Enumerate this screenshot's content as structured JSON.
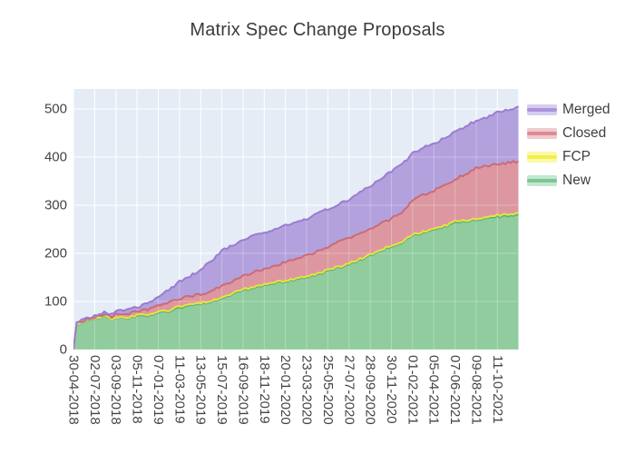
{
  "title": "Matrix Spec Change Proposals",
  "legend": {
    "items": [
      {
        "label": "Merged",
        "line_color": "#ab93dd",
        "fill_color": "#d7cdf0"
      },
      {
        "label": "Closed",
        "line_color": "#dc8b94",
        "fill_color": "#f0c9ce"
      },
      {
        "label": "FCP",
        "line_color": "#f2ef4e",
        "fill_color": "#fbf9a8"
      },
      {
        "label": "New",
        "line_color": "#7ec694",
        "fill_color": "#c4e6cf"
      }
    ]
  },
  "axes": {
    "y": {
      "ticks": [
        "0",
        "100",
        "200",
        "300",
        "400",
        "500"
      ]
    },
    "x": {
      "tick_labels": [
        "30-04-2018",
        "02-07-2018",
        "03-09-2018",
        "05-11-2018",
        "07-01-2019",
        "11-03-2019",
        "13-05-2019",
        "15-07-2019",
        "16-09-2019",
        "18-11-2019",
        "20-01-2020",
        "23-03-2020",
        "25-05-2020",
        "27-07-2020",
        "28-09-2020",
        "30-11-2020",
        "01-02-2021",
        "05-04-2021",
        "07-06-2021",
        "09-08-2021",
        "11-10-2021"
      ]
    }
  },
  "chart_data": {
    "type": "area",
    "stacked": true,
    "title": "Matrix Spec Change Proposals",
    "xlabel": "",
    "ylabel": "",
    "y_ticks": [
      0,
      100,
      200,
      300,
      400,
      500
    ],
    "y_range": [
      0,
      541
    ],
    "x_tick_labels": [
      "30-04-2018",
      "02-07-2018",
      "03-09-2018",
      "05-11-2018",
      "07-01-2019",
      "11-03-2019",
      "13-05-2019",
      "15-07-2019",
      "16-09-2019",
      "18-11-2019",
      "20-01-2020",
      "23-03-2020",
      "25-05-2020",
      "27-07-2020",
      "28-09-2020",
      "30-11-2020",
      "01-02-2021",
      "05-04-2021",
      "07-06-2021",
      "09-08-2021",
      "11-10-2021"
    ],
    "grid": "white major gridlines on light background",
    "legend_position": "right-top",
    "series_order_bottom_to_top": [
      "New",
      "FCP",
      "Closed",
      "Merged"
    ],
    "series_styles": {
      "New": {
        "fill": "#90cc9e",
        "line": "#55b173"
      },
      "FCP": {
        "fill": "#f7f45f",
        "line": "#e9e33e"
      },
      "Closed": {
        "fill": "#dc97a0",
        "line": "#cb6b77"
      },
      "Merged": {
        "fill": "#b3a1de",
        "line": "#9a7dd1"
      }
    },
    "plot_background": "#e5ecf6",
    "grid_color": "#ffffff",
    "point_columns": [
      "tick_index",
      "New",
      "FCP",
      "Closed",
      "Merged"
    ],
    "points": [
      [
        0,
        0,
        0,
        0,
        0
      ],
      [
        0.15,
        52,
        1,
        1,
        2
      ],
      [
        0.5,
        58,
        1,
        1,
        3
      ],
      [
        1,
        63,
        1,
        2,
        4
      ],
      [
        1.45,
        70,
        1,
        2,
        4
      ],
      [
        1.8,
        63,
        1,
        3,
        6
      ],
      [
        2,
        67,
        1,
        5,
        7
      ],
      [
        2.5,
        66,
        1,
        7,
        9
      ],
      [
        3,
        69,
        2,
        8,
        9
      ],
      [
        3.5,
        71,
        2,
        10,
        13
      ],
      [
        4,
        76,
        2,
        13,
        19
      ],
      [
        4.5,
        80,
        2,
        15,
        27
      ],
      [
        5,
        87,
        3,
        16,
        35
      ],
      [
        5.5,
        91,
        2,
        17,
        43
      ],
      [
        6,
        95,
        2,
        18,
        51
      ],
      [
        6.5,
        100,
        2,
        20,
        62
      ],
      [
        7,
        107,
        2,
        23,
        74
      ],
      [
        7.5,
        115,
        2,
        26,
        74
      ],
      [
        8,
        123,
        2,
        29,
        74
      ],
      [
        8.5,
        128,
        2,
        31,
        75
      ],
      [
        9,
        133,
        2,
        33,
        76
      ],
      [
        9.5,
        138,
        2,
        35,
        76
      ],
      [
        10,
        142,
        2,
        38,
        76
      ],
      [
        10.5,
        145,
        2,
        41,
        77
      ],
      [
        11,
        149,
        2,
        44,
        77
      ],
      [
        11.5,
        156,
        2,
        46,
        78
      ],
      [
        12,
        164,
        2,
        48,
        78
      ],
      [
        12.5,
        170,
        2,
        51,
        79
      ],
      [
        13,
        177,
        2,
        53,
        80
      ],
      [
        13.5,
        186,
        2,
        54,
        84
      ],
      [
        14,
        196,
        2,
        54,
        88
      ],
      [
        14.5,
        205,
        2,
        55,
        93
      ],
      [
        15,
        215,
        2,
        55,
        98
      ],
      [
        15.5,
        222,
        2,
        62,
        98
      ],
      [
        16,
        238,
        2,
        70,
        98
      ],
      [
        16.5,
        243,
        2,
        76,
        98
      ],
      [
        17,
        248,
        2,
        80,
        98
      ],
      [
        17.5,
        255,
        2,
        84,
        98
      ],
      [
        18,
        263,
        3,
        88,
        98
      ],
      [
        18.5,
        267,
        2,
        96,
        99
      ],
      [
        19,
        270,
        2,
        105,
        99
      ],
      [
        19.5,
        273,
        2,
        106,
        101
      ],
      [
        20,
        276,
        3,
        106,
        107
      ],
      [
        21,
        281,
        3,
        107,
        114
      ]
    ]
  }
}
